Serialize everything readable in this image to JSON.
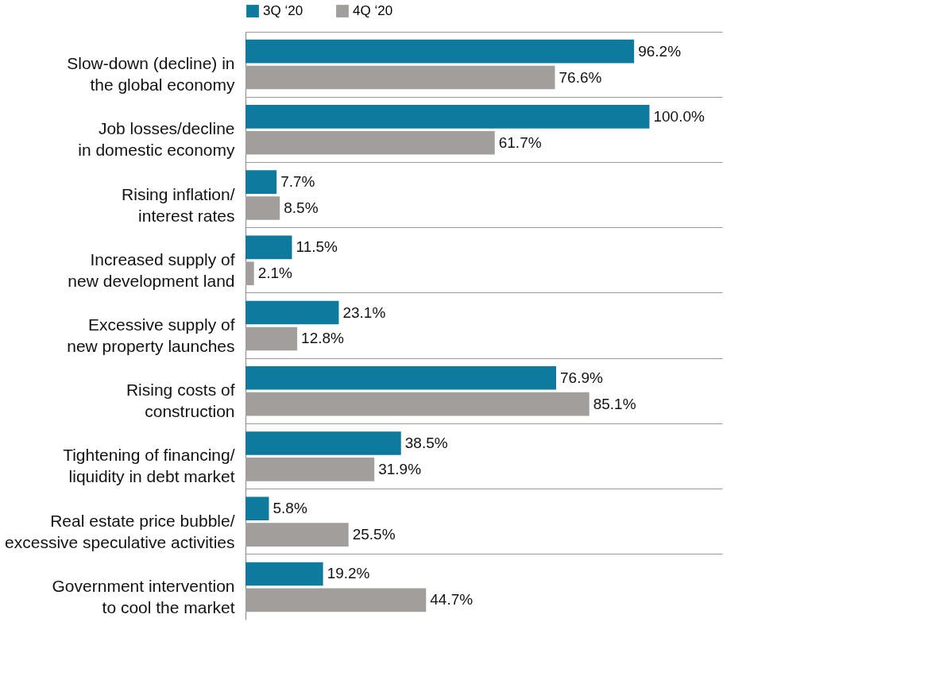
{
  "chart_data": {
    "type": "bar",
    "orientation": "horizontal",
    "legend": "top",
    "grid": "y",
    "categories": [
      "Slow-down (decline) in\nthe global economy",
      "Job losses/decline\nin domestic economy",
      "Rising inflation/\ninterest rates",
      "Increased supply of\nnew development land",
      "Excessive supply of\nnew property launches",
      "Rising costs of\nconstruction",
      "Tightening of financing/\nliquidity in debt market",
      "Real estate price bubble/\nexcessive speculative activities",
      "Government intervention\nto cool the market"
    ],
    "series": [
      {
        "name": "3Q ‘20",
        "color": "#0e7b9e",
        "values": [
          96.2,
          100.0,
          7.7,
          11.5,
          23.1,
          76.9,
          38.5,
          5.8,
          19.2
        ],
        "value_labels": [
          "96.2%",
          "100.0%",
          "7.7%",
          "11.5%",
          "23.1%",
          "76.9%",
          "38.5%",
          "5.8%",
          "19.2%"
        ]
      },
      {
        "name": "4Q ‘20",
        "color": "#a19e9c",
        "values": [
          76.6,
          61.7,
          8.5,
          2.1,
          12.8,
          85.1,
          31.9,
          25.5,
          44.7
        ],
        "value_labels": [
          "76.6%",
          "61.7%",
          "8.5%",
          "2.1%",
          "12.8%",
          "85.1%",
          "31.9%",
          "25.5%",
          "44.7%"
        ]
      }
    ]
  }
}
